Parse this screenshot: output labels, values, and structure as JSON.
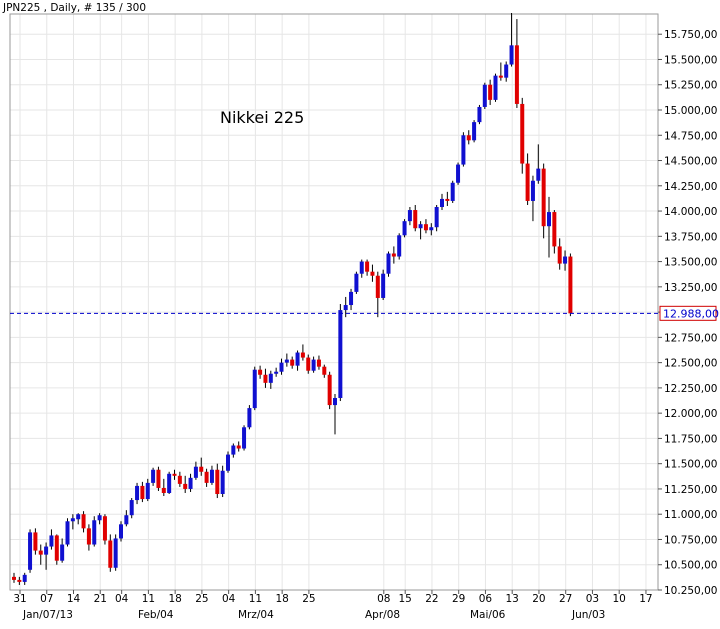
{
  "header_text": "JPN225 , Daily, # 135 / 300",
  "chart_data": {
    "type": "candlestick",
    "symbol": "JPN225",
    "timeframe": "Daily",
    "title": "Nikkei 225",
    "current_price": 12988.0,
    "current_price_label": "12.988,00",
    "ylim": [
      10250,
      15950
    ],
    "y_ticks": [
      10250,
      10500,
      10750,
      11000,
      11250,
      11500,
      11750,
      12000,
      12250,
      12500,
      12750,
      13000,
      13250,
      13500,
      13750,
      14000,
      14250,
      14500,
      14750,
      15000,
      15250,
      15500,
      15750
    ],
    "y_tick_labels": [
      "10.250,00",
      "10.500,00",
      "10.750,00",
      "11.000,00",
      "11.250,00",
      "11.500,00",
      "11.750,00",
      "12.000,00",
      "12.250,00",
      "12.500,00",
      "12.750,00",
      "13.000,00",
      "13.250,00",
      "13.500,00",
      "13.750,00",
      "14.000,00",
      "14.250,00",
      "14.500,00",
      "14.750,00",
      "15.000,00",
      "15.250,00",
      "15.500,00",
      "15.750,00"
    ],
    "x_day_labels": [
      "31",
      "07",
      "14",
      "21",
      "04",
      "11",
      "18",
      "25",
      "04",
      "11",
      "18",
      "25",
      "08",
      "15",
      "22",
      "29",
      "06",
      "13",
      "20",
      "27",
      "03",
      "10",
      "17"
    ],
    "x_month_labels": [
      "Jan/07/13",
      "Feb/04",
      "Mrz/04",
      "Apr/08",
      "Mai/06",
      "Jun/03"
    ],
    "colors": {
      "up": "#1010d0",
      "down": "#e00000",
      "wick": "#000000",
      "current_price": "#0000cc",
      "price_box": "#d00000",
      "grid": "#e6e6e6"
    },
    "candles_note": "OHLC in index points, oldest to newest (Dec 31 to Jun 03)",
    "candles": [
      [
        10380,
        10420,
        10320,
        10350
      ],
      [
        10350,
        10380,
        10300,
        10330
      ],
      [
        10330,
        10420,
        10300,
        10400
      ],
      [
        10450,
        10850,
        10420,
        10820
      ],
      [
        10820,
        10860,
        10600,
        10640
      ],
      [
        10640,
        10700,
        10500,
        10600
      ],
      [
        10600,
        10720,
        10450,
        10680
      ],
      [
        10680,
        10850,
        10650,
        10790
      ],
      [
        10790,
        10800,
        10500,
        10540
      ],
      [
        10540,
        10760,
        10520,
        10700
      ],
      [
        10700,
        10960,
        10680,
        10930
      ],
      [
        10930,
        11000,
        10850,
        10960
      ],
      [
        10950,
        11010,
        10900,
        11000
      ],
      [
        11000,
        11030,
        10820,
        10860
      ],
      [
        10860,
        10900,
        10640,
        10700
      ],
      [
        10700,
        10980,
        10680,
        10940
      ],
      [
        10940,
        11010,
        10900,
        10990
      ],
      [
        10980,
        11000,
        10700,
        10740
      ],
      [
        10740,
        10800,
        10430,
        10470
      ],
      [
        10470,
        10800,
        10440,
        10760
      ],
      [
        10760,
        10930,
        10730,
        10900
      ],
      [
        10900,
        11040,
        10880,
        10990
      ],
      [
        10990,
        11160,
        10960,
        11140
      ],
      [
        11140,
        11310,
        11100,
        11280
      ],
      [
        11280,
        11320,
        11120,
        11150
      ],
      [
        11150,
        11350,
        11130,
        11310
      ],
      [
        11310,
        11460,
        11280,
        11440
      ],
      [
        11440,
        11470,
        11230,
        11260
      ],
      [
        11260,
        11350,
        11180,
        11210
      ],
      [
        11210,
        11420,
        11200,
        11400
      ],
      [
        11400,
        11440,
        11340,
        11380
      ],
      [
        11380,
        11420,
        11270,
        11300
      ],
      [
        11300,
        11380,
        11210,
        11250
      ],
      [
        11250,
        11400,
        11220,
        11360
      ],
      [
        11360,
        11520,
        11340,
        11470
      ],
      [
        11470,
        11560,
        11380,
        11420
      ],
      [
        11420,
        11450,
        11270,
        11310
      ],
      [
        11310,
        11480,
        11290,
        11440
      ],
      [
        11440,
        11500,
        11160,
        11200
      ],
      [
        11200,
        11480,
        11170,
        11430
      ],
      [
        11430,
        11620,
        11410,
        11590
      ],
      [
        11590,
        11700,
        11560,
        11680
      ],
      [
        11680,
        11720,
        11620,
        11650
      ],
      [
        11650,
        11880,
        11630,
        11860
      ],
      [
        11860,
        12080,
        11840,
        12050
      ],
      [
        12050,
        12460,
        12030,
        12430
      ],
      [
        12430,
        12470,
        12340,
        12380
      ],
      [
        12380,
        12440,
        12250,
        12300
      ],
      [
        12300,
        12420,
        12240,
        12390
      ],
      [
        12390,
        12450,
        12360,
        12410
      ],
      [
        12410,
        12540,
        12380,
        12500
      ],
      [
        12500,
        12590,
        12460,
        12530
      ],
      [
        12530,
        12560,
        12440,
        12470
      ],
      [
        12470,
        12620,
        12420,
        12600
      ],
      [
        12600,
        12680,
        12520,
        12550
      ],
      [
        12550,
        12580,
        12390,
        12420
      ],
      [
        12420,
        12560,
        12400,
        12530
      ],
      [
        12530,
        12570,
        12430,
        12460
      ],
      [
        12460,
        12480,
        12350,
        12380
      ],
      [
        12380,
        12410,
        12040,
        12080
      ],
      [
        12080,
        12190,
        11790,
        12150
      ],
      [
        12150,
        13080,
        12120,
        13020
      ],
      [
        13020,
        13150,
        12950,
        13070
      ],
      [
        13070,
        13230,
        13020,
        13200
      ],
      [
        13200,
        13400,
        13180,
        13380
      ],
      [
        13380,
        13520,
        13340,
        13500
      ],
      [
        13500,
        13520,
        13360,
        13400
      ],
      [
        13400,
        13470,
        13300,
        13360
      ],
      [
        13360,
        13400,
        12950,
        13140
      ],
      [
        13140,
        13420,
        13120,
        13380
      ],
      [
        13380,
        13600,
        13350,
        13580
      ],
      [
        13580,
        13650,
        13480,
        13550
      ],
      [
        13550,
        13780,
        13520,
        13760
      ],
      [
        13760,
        13920,
        13740,
        13900
      ],
      [
        13900,
        14040,
        13860,
        14010
      ],
      [
        14010,
        14060,
        13800,
        13830
      ],
      [
        13830,
        13900,
        13720,
        13870
      ],
      [
        13870,
        13920,
        13780,
        13810
      ],
      [
        13810,
        13880,
        13760,
        13840
      ],
      [
        13840,
        14060,
        13800,
        14040
      ],
      [
        14040,
        14170,
        14010,
        14120
      ],
      [
        14120,
        14190,
        14050,
        14100
      ],
      [
        14100,
        14300,
        14080,
        14280
      ],
      [
        14280,
        14480,
        14260,
        14460
      ],
      [
        14460,
        14780,
        14440,
        14750
      ],
      [
        14750,
        14800,
        14660,
        14700
      ],
      [
        14700,
        14900,
        14680,
        14880
      ],
      [
        14880,
        15050,
        14860,
        15030
      ],
      [
        15030,
        15270,
        15010,
        15250
      ],
      [
        15250,
        15300,
        15050,
        15100
      ],
      [
        15100,
        15360,
        15080,
        15340
      ],
      [
        15340,
        15470,
        15290,
        15320
      ],
      [
        15320,
        15480,
        15280,
        15450
      ],
      [
        15450,
        15960,
        15430,
        15640
      ],
      [
        15640,
        15900,
        15020,
        15060
      ],
      [
        15060,
        15120,
        14370,
        14470
      ],
      [
        14470,
        14570,
        14060,
        14100
      ],
      [
        14100,
        14350,
        13900,
        14300
      ],
      [
        14300,
        14660,
        14270,
        14420
      ],
      [
        14420,
        14470,
        13730,
        13850
      ],
      [
        13850,
        14140,
        13540,
        13990
      ],
      [
        13990,
        14010,
        13580,
        13650
      ],
      [
        13650,
        13730,
        13420,
        13480
      ],
      [
        13480,
        13610,
        13410,
        13550
      ],
      [
        13550,
        13580,
        12960,
        12988
      ]
    ]
  }
}
